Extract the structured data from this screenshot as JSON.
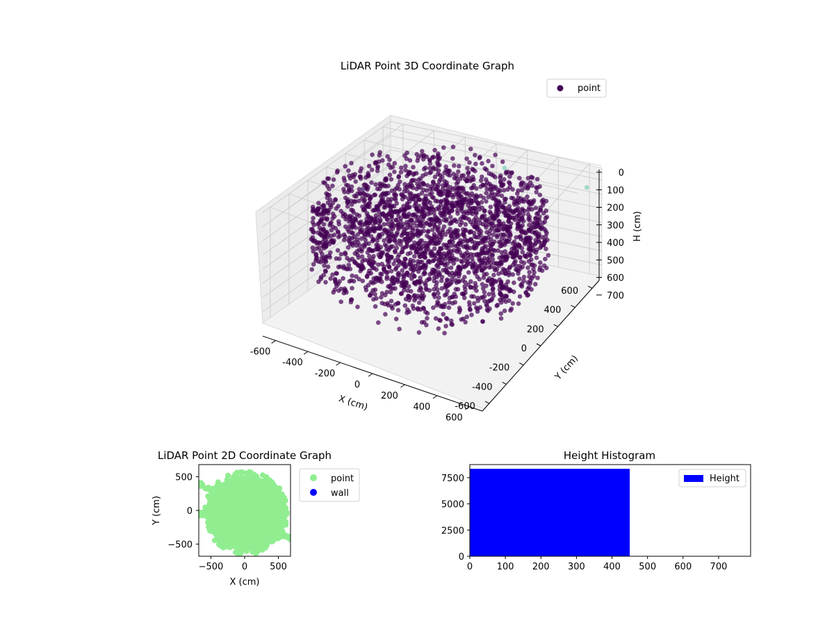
{
  "chart_data": [
    {
      "type": "scatter",
      "projection": "3d",
      "title": "LiDAR Point 3D Coordinate Graph",
      "xlabel": "X (cm)",
      "ylabel": "Y (cm)",
      "zlabel": "H (cm)",
      "xlim": [
        -680,
        680
      ],
      "ylim": [
        -680,
        680
      ],
      "zlim": [
        0,
        780
      ],
      "z_inverted": true,
      "xticks": [
        -600,
        -400,
        -200,
        0,
        200,
        400,
        600
      ],
      "yticks": [
        -600,
        -400,
        -200,
        0,
        200,
        400,
        600
      ],
      "zticks": [
        0,
        100,
        200,
        300,
        400,
        500,
        600,
        700
      ],
      "grid": true,
      "legend": {
        "placement": "top-right",
        "entries": [
          "point"
        ]
      },
      "colors": {
        "point": "#440154",
        "outlier": "#8fd3c1"
      },
      "series": [
        {
          "name": "point",
          "description_points": "dense ring-shaped cloud of points, radius up to about 650 cm, heights 0–450 cm",
          "outliers": [
            {
              "x": -600,
              "y": 250,
              "h": 250
            },
            {
              "x": 100,
              "y": 600,
              "h": 100
            },
            {
              "x": 600,
              "y": 650,
              "h": 150
            }
          ]
        }
      ]
    },
    {
      "type": "scatter",
      "title": "LiDAR Point 2D Coordinate Graph",
      "xlabel": "X (cm)",
      "ylabel": "Y (cm)",
      "xlim": [
        -680,
        680
      ],
      "ylim": [
        -680,
        680
      ],
      "xticks": [
        -500,
        0,
        500
      ],
      "yticks": [
        -500,
        0,
        500
      ],
      "legend": {
        "placement": "right",
        "entries": [
          "point",
          "wall"
        ]
      },
      "colors": {
        "point": "#90ee90",
        "wall": "#0000ff"
      },
      "series": [
        {
          "name": "point",
          "shape": "filled disk of radius about 600 cm centered near (0, -50), with streaks toward left and lower-right"
        },
        {
          "name": "wall",
          "values": []
        }
      ]
    },
    {
      "type": "bar",
      "title": "Height Histogram",
      "xlim": [
        0,
        790
      ],
      "ylim": [
        0,
        8750
      ],
      "xticks": [
        0,
        100,
        200,
        300,
        400,
        500,
        600,
        700
      ],
      "yticks": [
        0,
        2500,
        5000,
        7500
      ],
      "legend": {
        "placement": "top-right",
        "entries": [
          "Height"
        ]
      },
      "colors": {
        "Height": "#0000ff"
      },
      "bins": [
        {
          "start": 0,
          "end": 450,
          "count": 8350
        }
      ]
    }
  ]
}
